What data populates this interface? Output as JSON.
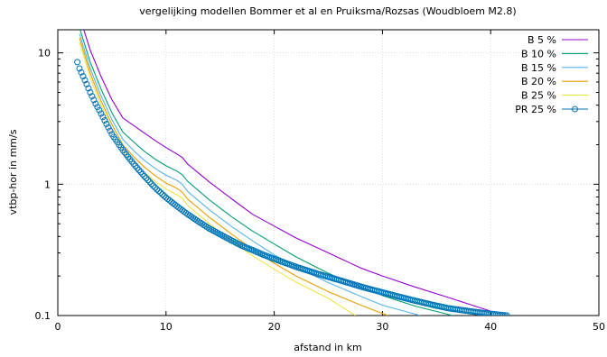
{
  "chart_data": {
    "type": "line",
    "title": "vergelijking modellen Bommer et al en Pruiksma/Rozsas (Woudbloem M2.8)",
    "xlabel": "afstand in km",
    "ylabel": "vtbp-hor in mm/s",
    "xlim": [
      0,
      50
    ],
    "ylim": [
      0.1,
      15
    ],
    "yscale": "log",
    "grid": true,
    "legend_position": "top-right",
    "x_ticks": [
      "0",
      "10",
      "20",
      "30",
      "40",
      "50"
    ],
    "y_ticks": [
      "0.1",
      "1",
      "10"
    ],
    "series": [
      {
        "name": "B  5 %",
        "color": "#9400d3",
        "style": "line",
        "x": [
          2,
          3,
          4,
          5,
          6,
          7,
          8,
          9,
          10,
          11,
          11.5,
          12,
          14,
          16,
          18,
          20,
          22,
          25,
          28,
          30,
          33,
          36,
          38,
          40
        ],
        "y": [
          19,
          10.5,
          6.6,
          4.4,
          3.2,
          2.8,
          2.45,
          2.15,
          1.9,
          1.7,
          1.6,
          1.42,
          1.04,
          0.78,
          0.59,
          0.48,
          0.39,
          0.3,
          0.23,
          0.2,
          0.165,
          0.138,
          0.122,
          0.108
        ]
      },
      {
        "name": "B  10 %",
        "color": "#009e73",
        "style": "line",
        "x": [
          2,
          3,
          4,
          5,
          6,
          7,
          8,
          9,
          10,
          11,
          11.5,
          12,
          14,
          16,
          18,
          20,
          22,
          25,
          28,
          30,
          33,
          36.5
        ],
        "y": [
          15.5,
          8.5,
          5.3,
          3.5,
          2.5,
          2.1,
          1.78,
          1.55,
          1.38,
          1.26,
          1.18,
          1.05,
          0.76,
          0.57,
          0.44,
          0.35,
          0.28,
          0.21,
          0.165,
          0.142,
          0.118,
          0.1
        ]
      },
      {
        "name": "B  15 %",
        "color": "#56b4e9",
        "style": "line",
        "x": [
          2,
          3,
          4,
          5,
          6,
          7,
          8,
          9,
          10,
          11,
          11.5,
          12,
          14,
          16,
          18,
          20,
          22,
          25,
          28,
          30,
          33.5
        ],
        "y": [
          14,
          7.6,
          4.7,
          3.1,
          2.2,
          1.8,
          1.52,
          1.32,
          1.17,
          1.07,
          1.0,
          0.88,
          0.64,
          0.48,
          0.37,
          0.29,
          0.235,
          0.178,
          0.14,
          0.12,
          0.1
        ]
      },
      {
        "name": "B  20 %",
        "color": "#e69f00",
        "style": "line",
        "x": [
          2,
          3,
          4,
          5,
          6,
          7,
          8,
          9,
          10,
          11,
          11.5,
          12,
          14,
          16,
          18,
          20,
          22,
          25,
          28,
          30.5
        ],
        "y": [
          13,
          7.0,
          4.3,
          2.85,
          2.0,
          1.62,
          1.35,
          1.16,
          1.02,
          0.93,
          0.87,
          0.77,
          0.56,
          0.42,
          0.32,
          0.25,
          0.2,
          0.152,
          0.12,
          0.1
        ]
      },
      {
        "name": "B  25 %",
        "color": "#f0e442",
        "style": "line",
        "x": [
          2,
          3,
          4,
          5,
          6,
          7,
          8,
          9,
          10,
          11,
          11.5,
          12,
          14,
          16,
          18,
          20,
          22,
          25,
          27.5
        ],
        "y": [
          12,
          6.5,
          4.0,
          2.65,
          1.85,
          1.48,
          1.23,
          1.05,
          0.92,
          0.83,
          0.78,
          0.69,
          0.5,
          0.375,
          0.285,
          0.225,
          0.18,
          0.135,
          0.1
        ]
      },
      {
        "name": "PR  25 %",
        "color": "#0072b2",
        "style": "points",
        "x": [
          1.8,
          2,
          2.5,
          3,
          3.5,
          4,
          5,
          6,
          7,
          8,
          9,
          10,
          11,
          12,
          13,
          14,
          15,
          16,
          17,
          18,
          19,
          20,
          22,
          24,
          26,
          28,
          30,
          32,
          34,
          36,
          38,
          40,
          41.5
        ],
        "y": [
          8.5,
          7.6,
          6.2,
          5.0,
          4.1,
          3.45,
          2.4,
          1.82,
          1.43,
          1.15,
          0.94,
          0.79,
          0.68,
          0.59,
          0.52,
          0.46,
          0.415,
          0.375,
          0.34,
          0.315,
          0.29,
          0.27,
          0.235,
          0.208,
          0.186,
          0.166,
          0.15,
          0.136,
          0.124,
          0.114,
          0.108,
          0.103,
          0.1
        ]
      }
    ]
  }
}
